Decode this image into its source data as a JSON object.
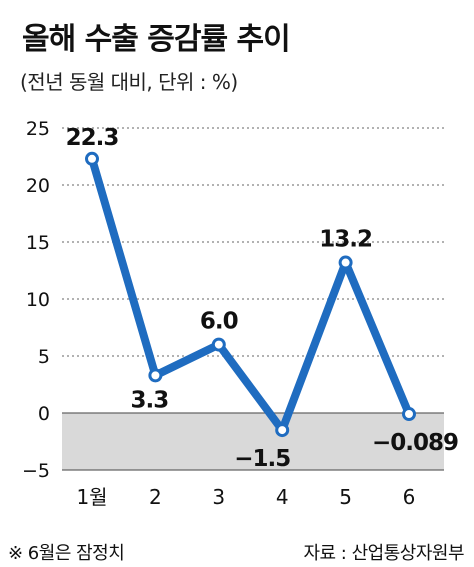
{
  "title": "올해 수출 증감률 추이",
  "subtitle": "(전년 동월 대비, 단위 : %)",
  "footnote": "※ 6월은 잠정치",
  "source": "자료 : 산업통상자원부",
  "colors": {
    "line": "#1f6cc0",
    "marker_fill": "#ffffff",
    "negative_band": "#d9d9d9",
    "grid": "#666666",
    "text": "#111111"
  },
  "chart_data": {
    "type": "line",
    "categories": [
      "1월",
      "2",
      "3",
      "4",
      "5",
      "6"
    ],
    "series": [
      {
        "values": [
          22.3,
          3.3,
          6.0,
          -1.5,
          13.2,
          -0.089
        ]
      }
    ],
    "data_labels": [
      "22.3",
      "3.3",
      "6.0",
      "−1.5",
      "13.2",
      "−0.089"
    ],
    "yticks": [
      25,
      20,
      15,
      10,
      5,
      0,
      -5
    ],
    "ytick_labels": [
      "25",
      "20",
      "15",
      "10",
      "5",
      "0",
      "−5"
    ],
    "ylim": [
      -5,
      25
    ],
    "grid": "dotted horizontal",
    "legend": "none"
  }
}
